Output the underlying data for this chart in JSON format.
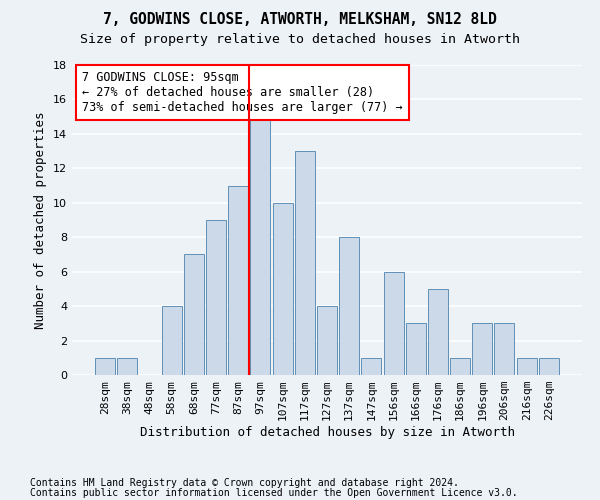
{
  "title1": "7, GODWINS CLOSE, ATWORTH, MELKSHAM, SN12 8LD",
  "title2": "Size of property relative to detached houses in Atworth",
  "xlabel": "Distribution of detached houses by size in Atworth",
  "ylabel": "Number of detached properties",
  "bar_labels": [
    "28sqm",
    "38sqm",
    "48sqm",
    "58sqm",
    "68sqm",
    "77sqm",
    "87sqm",
    "97sqm",
    "107sqm",
    "117sqm",
    "127sqm",
    "137sqm",
    "147sqm",
    "156sqm",
    "166sqm",
    "176sqm",
    "186sqm",
    "196sqm",
    "206sqm",
    "216sqm",
    "226sqm"
  ],
  "bar_values": [
    1,
    1,
    0,
    4,
    7,
    9,
    11,
    15,
    10,
    13,
    4,
    8,
    1,
    6,
    3,
    5,
    1,
    3,
    3,
    1,
    1
  ],
  "bar_color": "#ccd9e8",
  "bar_edge_color": "#6090b8",
  "vline_index": 7,
  "vline_color": "red",
  "annotation_text": "7 GODWINS CLOSE: 95sqm\n← 27% of detached houses are smaller (28)\n73% of semi-detached houses are larger (77) →",
  "annotation_box_color": "white",
  "annotation_box_edge_color": "red",
  "ylim": [
    0,
    18
  ],
  "yticks": [
    0,
    2,
    4,
    6,
    8,
    10,
    12,
    14,
    16,
    18
  ],
  "footnote1": "Contains HM Land Registry data © Crown copyright and database right 2024.",
  "footnote2": "Contains public sector information licensed under the Open Government Licence v3.0.",
  "background_color": "#edf2f7",
  "grid_color": "#ffffff",
  "title1_fontsize": 10.5,
  "title2_fontsize": 9.5,
  "xlabel_fontsize": 9,
  "ylabel_fontsize": 9,
  "tick_fontsize": 8,
  "annotation_fontsize": 8.5,
  "footnote_fontsize": 7
}
